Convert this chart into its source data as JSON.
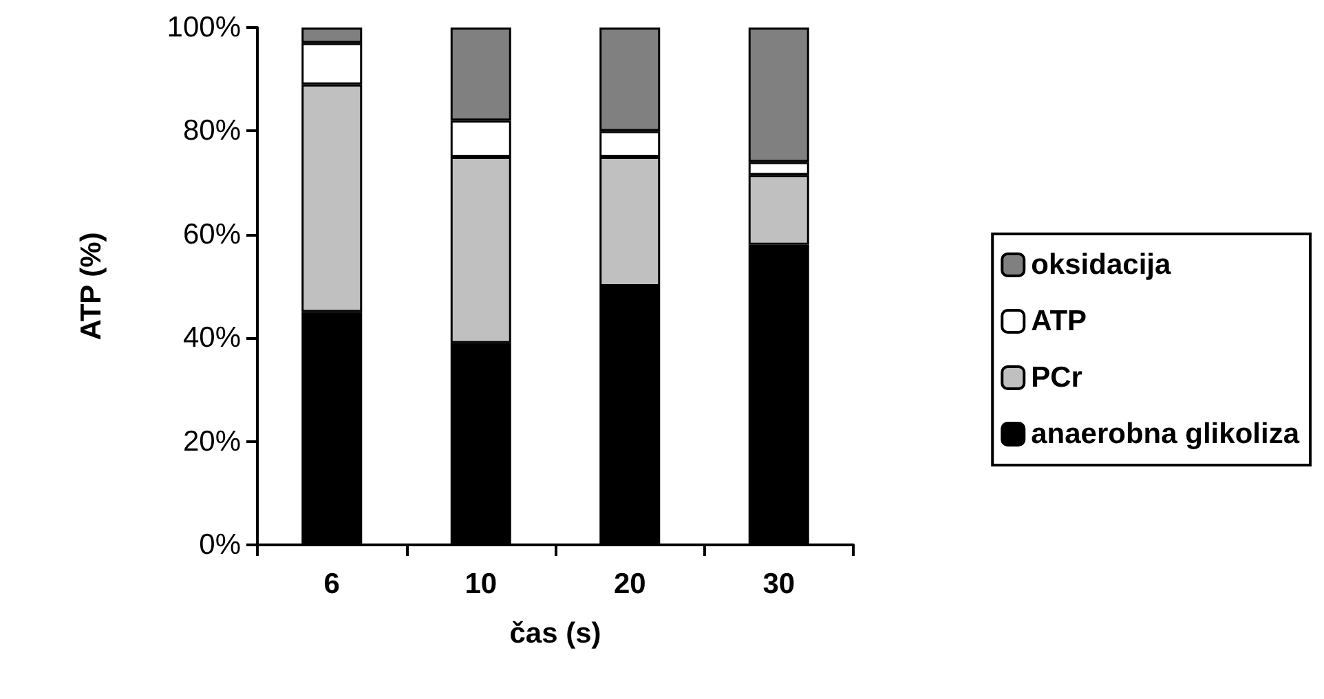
{
  "chart_data": {
    "type": "bar",
    "stacked": true,
    "xlabel": "čas (s)",
    "ylabel": "ATP (%)",
    "categories": [
      "6",
      "10",
      "20",
      "30"
    ],
    "series": [
      {
        "name": "anaerobna glikoliza",
        "color": "#000000",
        "values": [
          45,
          39,
          50,
          58
        ]
      },
      {
        "name": "PCr",
        "color": "#c0c0c0",
        "values": [
          44,
          36,
          25,
          13.5
        ]
      },
      {
        "name": "ATP",
        "color": "#ffffff",
        "values": [
          8,
          7,
          5,
          2.5
        ]
      },
      {
        "name": "oksidacija",
        "color": "#808080",
        "values": [
          3,
          18,
          20,
          26
        ]
      }
    ],
    "ylim": [
      0,
      100
    ],
    "yticks": [
      {
        "value": 0,
        "label": "0%"
      },
      {
        "value": 20,
        "label": "20%"
      },
      {
        "value": 40,
        "label": "40%"
      },
      {
        "value": 60,
        "label": "60%"
      },
      {
        "value": 80,
        "label": "80%"
      },
      {
        "value": 100,
        "label": "100%"
      }
    ],
    "grid": false,
    "legend": "right"
  }
}
